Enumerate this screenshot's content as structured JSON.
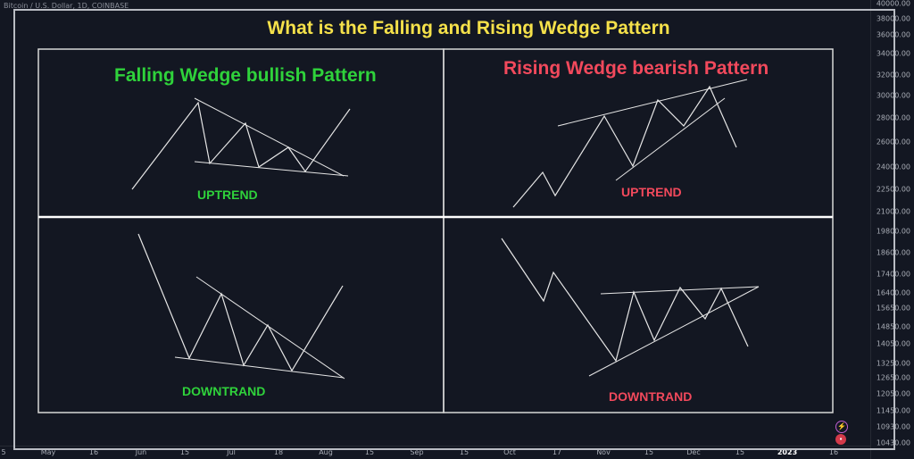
{
  "symbol": "Bitcoin / U.S. Dollar, 1D, COINBASE",
  "title": "What is the Falling and Rising Wedge Pattern",
  "panels": {
    "top_left": {
      "title": "Falling Wedge bullish Pattern",
      "trend": "UPTREND",
      "color": "#2fd23b"
    },
    "top_right": {
      "title": "Rising Wedge bearish Pattern",
      "trend": "UPTREND",
      "color": "#f2495c"
    },
    "bottom_left": {
      "trend": "DOWNTRAND",
      "color": "#2fd23b"
    },
    "bottom_right": {
      "trend": "DOWNTRAND",
      "color": "#f2495c"
    }
  },
  "price_axis": [
    "40000.00",
    "38000.00",
    "36000.00",
    "34000.00",
    "32000.00",
    "30000.00",
    "28000.00",
    "26000.00",
    "24000.00",
    "22500.00",
    "21000.00",
    "19800.00",
    "18600.00",
    "17400.00",
    "16400.00",
    "15650.00",
    "14850.00",
    "14050.00",
    "13250.00",
    "12650.00",
    "12050.00",
    "11450.00",
    "10930.00",
    "10430.00"
  ],
  "time_axis": [
    "5",
    "May",
    "16",
    "Jun",
    "15",
    "Jul",
    "18",
    "Aug",
    "15",
    "Sep",
    "15",
    "Oct",
    "17",
    "Nov",
    "15",
    "Dec",
    "15",
    "2023",
    "16"
  ],
  "colors": {
    "background": "#131722",
    "title": "#f5e14a",
    "lines": "#e6e6e6",
    "divider": "#ffffff"
  },
  "icons": [
    "lightning-icon",
    "flag-icon"
  ]
}
